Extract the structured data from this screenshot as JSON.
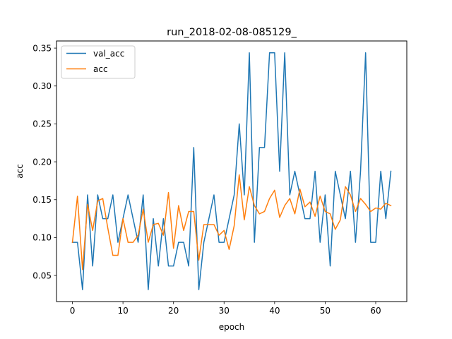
{
  "chart_data": {
    "type": "line",
    "title": "run_2018-02-08-085129_",
    "xlabel": "epoch",
    "ylabel": "acc",
    "xlim": [
      -3.15,
      66.15
    ],
    "ylim": [
      0.0156,
      0.3594
    ],
    "xticks": [
      0,
      10,
      20,
      30,
      40,
      50,
      60
    ],
    "yticks": [
      0.05,
      0.1,
      0.15,
      0.2,
      0.25,
      0.3,
      0.35
    ],
    "ytick_labels": [
      "0.05",
      "0.10",
      "0.15",
      "0.20",
      "0.25",
      "0.30",
      "0.35"
    ],
    "grid": false,
    "legend_position": "upper-left",
    "series": [
      {
        "name": "val_acc",
        "color": "#1f77b4",
        "x": [
          0,
          1,
          2,
          3,
          4,
          5,
          6,
          7,
          8,
          9,
          10,
          11,
          12,
          13,
          14,
          15,
          16,
          17,
          18,
          19,
          20,
          21,
          22,
          23,
          24,
          25,
          26,
          27,
          28,
          29,
          30,
          31,
          32,
          33,
          34,
          35,
          36,
          37,
          38,
          39,
          40,
          41,
          42,
          43,
          44,
          45,
          46,
          47,
          48,
          49,
          50,
          51,
          52,
          53,
          54,
          55,
          56,
          57,
          58,
          59,
          60,
          61,
          62,
          63
        ],
        "values": [
          0.0938,
          0.0938,
          0.0313,
          0.1563,
          0.0625,
          0.1563,
          0.125,
          0.125,
          0.1563,
          0.0938,
          0.125,
          0.1563,
          0.125,
          0.0938,
          0.1563,
          0.0313,
          0.125,
          0.0625,
          0.125,
          0.0625,
          0.0625,
          0.0938,
          0.0938,
          0.0625,
          0.2188,
          0.0313,
          0.0938,
          0.125,
          0.1563,
          0.0938,
          0.0938,
          0.125,
          0.1563,
          0.25,
          0.1563,
          0.3438,
          0.0938,
          0.2188,
          0.2188,
          0.3438,
          0.3438,
          0.1875,
          0.3438,
          0.1563,
          0.1875,
          0.1563,
          0.125,
          0.125,
          0.1875,
          0.0938,
          0.1563,
          0.0625,
          0.1875,
          0.1563,
          0.125,
          0.1875,
          0.0938,
          0.1875,
          0.3438,
          0.0938,
          0.0938,
          0.1875,
          0.125,
          0.1875
        ]
      },
      {
        "name": "acc",
        "color": "#ff7f0e",
        "x": [
          0,
          1,
          2,
          3,
          4,
          5,
          6,
          7,
          8,
          9,
          10,
          11,
          12,
          13,
          14,
          15,
          16,
          17,
          18,
          19,
          20,
          21,
          22,
          23,
          24,
          25,
          26,
          27,
          28,
          29,
          30,
          31,
          32,
          33,
          34,
          35,
          36,
          37,
          38,
          39,
          40,
          41,
          42,
          43,
          44,
          45,
          46,
          47,
          48,
          49,
          50,
          51,
          52,
          53,
          54,
          55,
          56,
          57,
          58,
          59,
          60,
          61,
          62,
          63
        ],
        "values": [
          0.0938,
          0.1547,
          0.0578,
          0.1438,
          0.1094,
          0.1484,
          0.1516,
          0.1125,
          0.0766,
          0.0766,
          0.125,
          0.0938,
          0.0938,
          0.1031,
          0.1375,
          0.0938,
          0.1172,
          0.1188,
          0.1031,
          0.1594,
          0.0859,
          0.1422,
          0.1094,
          0.1344,
          0.1344,
          0.0703,
          0.1172,
          0.1172,
          0.1172,
          0.1031,
          0.1094,
          0.0844,
          0.1156,
          0.1828,
          0.1234,
          0.1672,
          0.1422,
          0.1313,
          0.1344,
          0.1516,
          0.1625,
          0.1266,
          0.1422,
          0.1516,
          0.1313,
          0.1641,
          0.1406,
          0.1469,
          0.1281,
          0.1547,
          0.1344,
          0.1313,
          0.1109,
          0.1234,
          0.1672,
          0.1563,
          0.1344,
          0.1516,
          0.1438,
          0.1344,
          0.1391,
          0.1375,
          0.1453,
          0.1422
        ]
      }
    ]
  }
}
